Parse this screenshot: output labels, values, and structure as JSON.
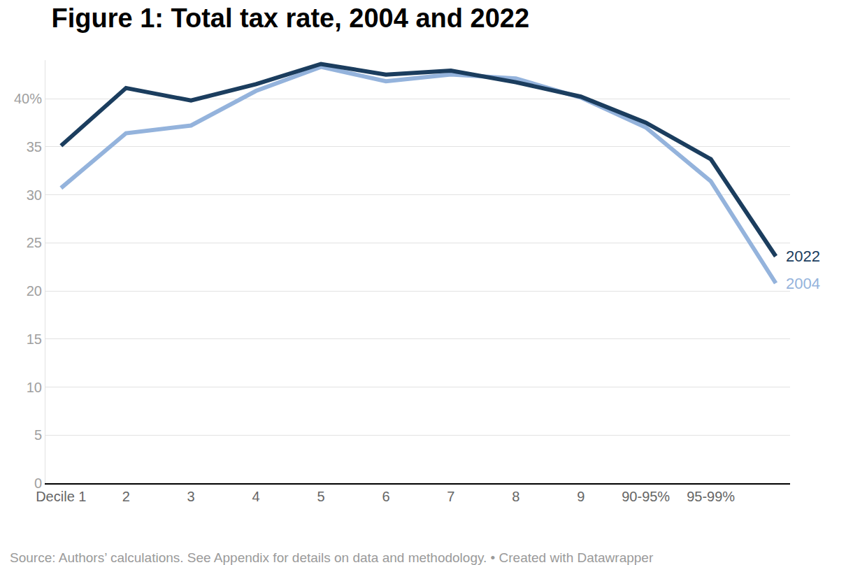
{
  "chart_data": {
    "type": "line",
    "title": "Figure 1: Total tax rate, 2004 and 2022",
    "source": "Source: Authors’ calculations. See Appendix for details on data and methodology. • Created with Datawrapper",
    "categories": [
      "Decile 1",
      "2",
      "3",
      "4",
      "5",
      "6",
      "7",
      "8",
      "9",
      "90-95%",
      "95-99%",
      null
    ],
    "series": [
      {
        "name": "2004",
        "color": "#94b3dc",
        "values": [
          30.7,
          36.4,
          37.2,
          40.8,
          43.3,
          41.8,
          42.5,
          42.1,
          40.1,
          37.0,
          31.4,
          20.8
        ]
      },
      {
        "name": "2022",
        "color": "#1b3d5e",
        "values": [
          35.1,
          41.1,
          39.8,
          41.5,
          43.6,
          42.5,
          42.9,
          41.7,
          40.2,
          37.5,
          33.7,
          23.6
        ]
      }
    ],
    "ylim": [
      0,
      44
    ],
    "yticks": [
      0,
      5,
      10,
      15,
      20,
      25,
      30,
      35,
      {
        "value": 40,
        "label": "40%"
      }
    ],
    "grid": true
  }
}
